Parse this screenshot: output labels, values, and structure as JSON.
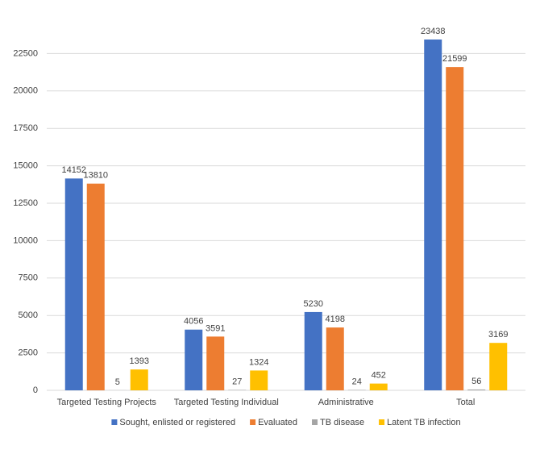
{
  "chart_data": {
    "type": "bar",
    "categories": [
      "Targeted Testing Projects",
      "Targeted Testing Individual",
      "Administrative",
      "Total"
    ],
    "series": [
      {
        "name": "Sought, enlisted or registered",
        "color": "#4472c4",
        "values": [
          14152,
          4056,
          5230,
          23438
        ]
      },
      {
        "name": "Evaluated",
        "color": "#ed7d31",
        "values": [
          13810,
          3591,
          4198,
          21599
        ]
      },
      {
        "name": "TB disease",
        "color": "#a5a5a5",
        "values": [
          5,
          27,
          24,
          56
        ]
      },
      {
        "name": "Latent TB infection",
        "color": "#ffc000",
        "values": [
          1393,
          1324,
          452,
          3169
        ]
      }
    ],
    "ylim": [
      0,
      25000
    ],
    "yticks": [
      0,
      2500,
      5000,
      7500,
      10000,
      12500,
      15000,
      17500,
      20000,
      22500
    ],
    "grid": true,
    "legend": "bottom"
  }
}
